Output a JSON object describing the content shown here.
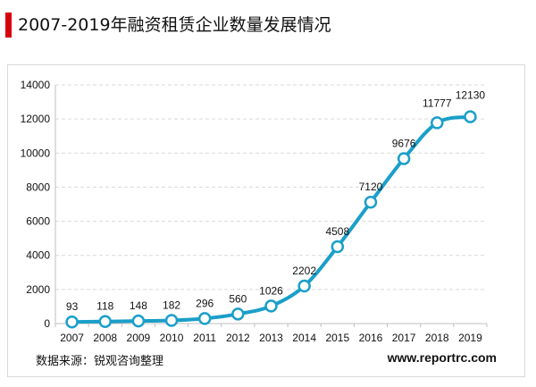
{
  "header": {
    "title": "2007-2019年融资租赁企业数量发展情况"
  },
  "footer": {
    "source": "数据来源：锐观咨询整理",
    "website": "www.reportrc.com"
  },
  "colors": {
    "accent_bar": "#d7000f",
    "series_line": "#1a9fc9",
    "marker_fill": "#ffffff",
    "grid": "#d9d9d9"
  },
  "chart_data": {
    "type": "line",
    "title": "",
    "xlabel": "",
    "ylabel": "",
    "categories": [
      "2007",
      "2008",
      "2009",
      "2010",
      "2011",
      "2012",
      "2013",
      "2014",
      "2015",
      "2016",
      "2017",
      "2018",
      "2019"
    ],
    "values": [
      93,
      118,
      148,
      182,
      296,
      560,
      1026,
      2202,
      4508,
      7120,
      9676,
      11777,
      12130
    ],
    "data_labels": [
      "93",
      "118",
      "148",
      "182",
      "296",
      "560",
      "1026",
      "2202",
      "4508",
      "7120",
      "9676",
      "11777",
      "12130"
    ],
    "ylim": [
      0,
      14000
    ],
    "yticks": [
      "0",
      "2000",
      "4000",
      "6000",
      "8000",
      "10000",
      "12000",
      "14000"
    ],
    "grid": true,
    "smooth": true,
    "legend": "none"
  }
}
